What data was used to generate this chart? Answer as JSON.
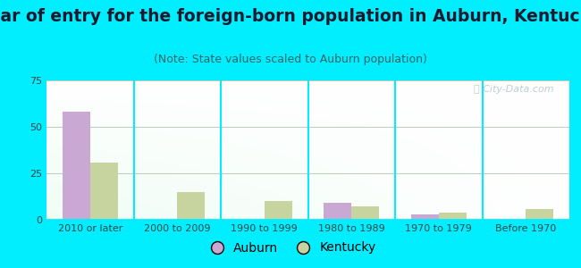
{
  "title": "Year of entry for the foreign-born population in Auburn, Kentucky",
  "subtitle": "(Note: State values scaled to Auburn population)",
  "categories": [
    "2010 or later",
    "2000 to 2009",
    "1990 to 1999",
    "1980 to 1989",
    "1970 to 1979",
    "Before 1970"
  ],
  "auburn_values": [
    58,
    0,
    0,
    9,
    3,
    0
  ],
  "kentucky_values": [
    31,
    15,
    10,
    7,
    4,
    6
  ],
  "auburn_color": "#c9a8d4",
  "kentucky_color": "#c8d4a0",
  "background_outer": "#00eeff",
  "ylim": [
    0,
    75
  ],
  "yticks": [
    0,
    25,
    50,
    75
  ],
  "bar_width": 0.32,
  "title_fontsize": 13.5,
  "subtitle_fontsize": 9,
  "tick_fontsize": 8,
  "legend_fontsize": 10,
  "grid_color": "#bbccbb",
  "separator_color": "#00eeff",
  "watermark_color": "#b0c8c8",
  "title_color": "#1a1a2e",
  "subtitle_color": "#336666",
  "tick_color": "#334444"
}
